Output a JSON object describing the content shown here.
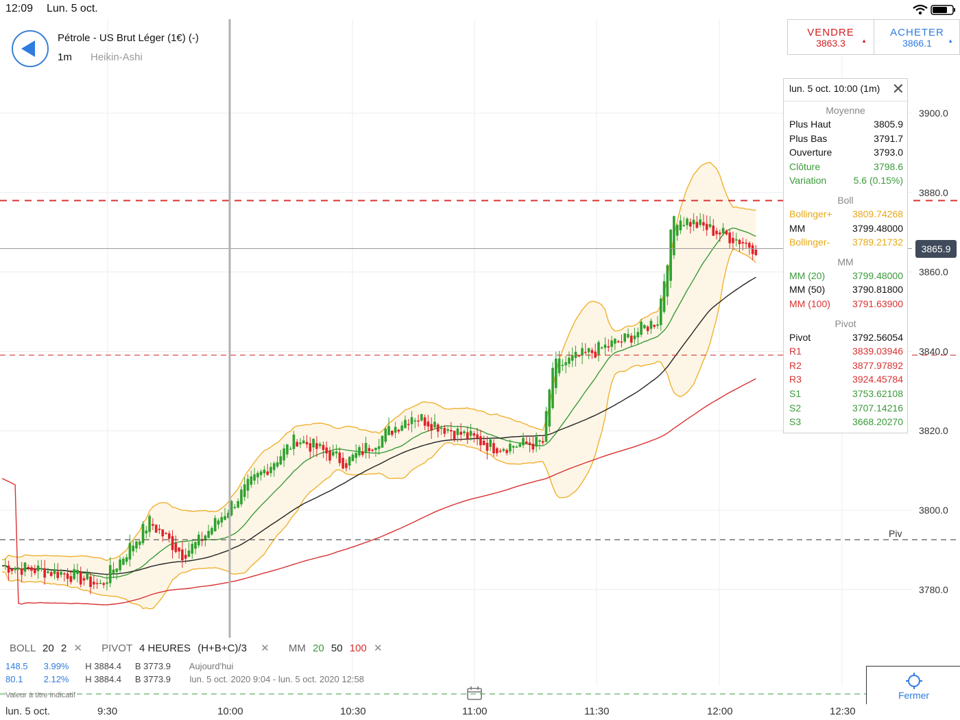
{
  "status_bar": {
    "time": "12:09",
    "date": "Lun. 5 oct."
  },
  "header": {
    "instrument": "Pétrole - US Brut Léger (1€) (-)",
    "timeframe": "1m",
    "chart_type": "Heikin-Ashi"
  },
  "trade": {
    "sell_label": "VENDRE",
    "sell_price": "3863.3",
    "buy_label": "ACHETER",
    "buy_price": "3866.1"
  },
  "tooltip": {
    "title": "lun. 5 oct. 10:00 (1m)",
    "avg_header": "Moyenne",
    "avg": [
      {
        "k": "Plus Haut",
        "v": "3805.9",
        "c": "#111"
      },
      {
        "k": "Plus Bas",
        "v": "3791.7",
        "c": "#111"
      },
      {
        "k": "Ouverture",
        "v": "3793.0",
        "c": "#111"
      },
      {
        "k": "Clôture",
        "v": "3798.6",
        "c": "#3a9a3a"
      },
      {
        "k": "Variation",
        "v": "5.6 (0.15%)",
        "c": "#3a9a3a"
      }
    ],
    "boll_header": "Boll",
    "boll": [
      {
        "k": "Bollinger+",
        "v": "3809.74268",
        "c": "#e6a817"
      },
      {
        "k": "MM",
        "v": "3799.48000",
        "c": "#111"
      },
      {
        "k": "Bollinger-",
        "v": "3789.21732",
        "c": "#e6a817"
      }
    ],
    "mm_header": "MM",
    "mm": [
      {
        "k": "MM (20)",
        "v": "3799.48000",
        "c": "#3a9a3a"
      },
      {
        "k": "MM (50)",
        "v": "3790.81800",
        "c": "#111"
      },
      {
        "k": "MM (100)",
        "v": "3791.63900",
        "c": "#d83030"
      }
    ],
    "pivot_header": "Pivot",
    "pivot": [
      {
        "k": "Pivot",
        "v": "3792.56054",
        "c": "#111"
      },
      {
        "k": "R1",
        "v": "3839.03946",
        "c": "#d83030"
      },
      {
        "k": "R2",
        "v": "3877.97892",
        "c": "#d83030"
      },
      {
        "k": "R3",
        "v": "3924.45784",
        "c": "#d83030"
      },
      {
        "k": "S1",
        "v": "3753.62108",
        "c": "#3a9a3a"
      },
      {
        "k": "S2",
        "v": "3707.14216",
        "c": "#3a9a3a"
      },
      {
        "k": "S3",
        "v": "3668.20270",
        "c": "#3a9a3a"
      }
    ]
  },
  "legend": {
    "boll_label": "BOLL",
    "boll_period": "20",
    "boll_dev": "2",
    "pivot_label": "PIVOT",
    "pivot_period": "4 HEURES",
    "pivot_formula": "(H+B+C)/3",
    "mm_label": "MM",
    "mm_20": "20",
    "mm_50": "50",
    "mm_100": "100",
    "close_glyph": "✕"
  },
  "info": {
    "line1_a": "148.5",
    "line1_b": "3.99%",
    "line1_h": "H 3884.4",
    "line1_l": "B 3773.9",
    "line1_range": "Aujourd'hui",
    "line2_a": "80.1",
    "line2_b": "2.12%",
    "line2_h": "H 3884.4",
    "line2_l": "B 3773.9",
    "line2_range": "lun. 5 oct. 2020 9:04 - lun. 5 oct. 2020 12:58",
    "line3": "Valeur à titre indicatif"
  },
  "fermer_label": "Fermer",
  "colors": {
    "up": "#2fa12f",
    "down": "#e0222a",
    "boll": "#f0b030",
    "mm20": "#3a9a3a",
    "mm50": "#222222",
    "mm100": "#d83030",
    "accent": "#2f7be0"
  },
  "chart_data": {
    "type": "candlestick",
    "yticks": [
      "3900.0",
      "3880.0",
      "3860.0",
      "3840.0",
      "3820.0",
      "3800.0",
      "3780.0"
    ],
    "ytick_values": [
      3900,
      3880,
      3860,
      3840,
      3820,
      3800,
      3780
    ],
    "xticks": [
      "lun. 5 oct.",
      "9:30",
      "10:00",
      "10:30",
      "11:00",
      "11:30",
      "12:00",
      "12:30"
    ],
    "current_price": "3865.9",
    "current_price_value": 3865.9,
    "pivot_label": "Piv",
    "levels": {
      "r2": 3877.98,
      "r1": 3839.04,
      "pivot": 3792.56
    },
    "crosshair_time": "10:00",
    "ohlc_approx": {
      "start": 3786,
      "end": 3866,
      "waypoints": [
        [
          0,
          3786
        ],
        [
          20,
          3784
        ],
        [
          30,
          3781
        ],
        [
          45,
          3797
        ],
        [
          55,
          3789
        ],
        [
          60,
          3792
        ],
        [
          75,
          3806
        ],
        [
          90,
          3818
        ],
        [
          105,
          3812
        ],
        [
          125,
          3824
        ],
        [
          150,
          3816
        ],
        [
          165,
          3817
        ],
        [
          168,
          3836
        ],
        [
          190,
          3843
        ],
        [
          200,
          3848
        ],
        [
          205,
          3874
        ],
        [
          225,
          3868
        ],
        [
          230,
          3866
        ]
      ]
    }
  }
}
